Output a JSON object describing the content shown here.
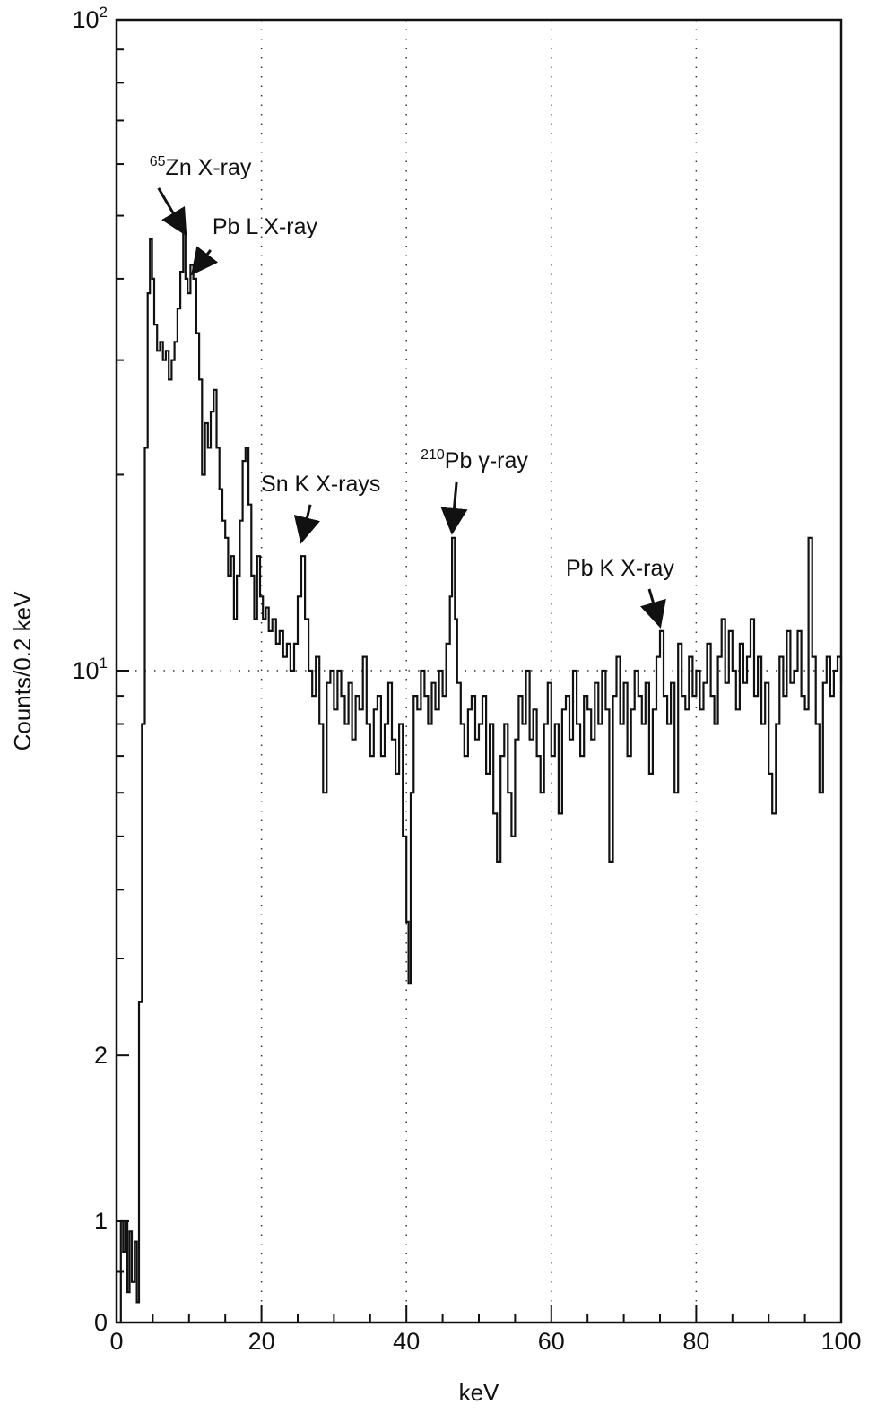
{
  "chart_data": {
    "type": "line",
    "title": "",
    "xlabel": "keV",
    "ylabel": "Counts/0.2 keV",
    "xlim": [
      0,
      100
    ],
    "y_scale": "log-style (linear 0–1, log above 1)",
    "x_ticks": [
      "0",
      "20",
      "40",
      "60",
      "80",
      "100"
    ],
    "y_ticks": [
      {
        "value": 0,
        "base": "0",
        "exp": ""
      },
      {
        "value": 1,
        "base": "1",
        "exp": ""
      },
      {
        "value": 2,
        "base": "2",
        "exp": ""
      },
      {
        "value": 10,
        "base": "10",
        "exp": "1"
      },
      {
        "value": 100,
        "base": "10",
        "exp": "2"
      }
    ],
    "grid": {
      "vertical_at": [
        20,
        40,
        60,
        80
      ],
      "horizontal_at": [
        10
      ],
      "style": "dotted"
    },
    "annotations": [
      {
        "label": "Zn X-ray",
        "sup": "65",
        "x": 9.5,
        "y": 46
      },
      {
        "label": "Pb L X-ray",
        "sup": "",
        "x": 10.5,
        "y": 40
      },
      {
        "label": "Sn K X-rays",
        "sup": "",
        "x": 25.5,
        "y": 15.5
      },
      {
        "label": "Pb γ-ray",
        "sup": "210",
        "x": 46.3,
        "y": 16
      },
      {
        "label": "Pb K X-ray",
        "sup": "",
        "x": 75,
        "y": 11.5
      }
    ],
    "series": [
      {
        "points": [
          [
            0.3,
            0
          ],
          [
            0.6,
            1
          ],
          [
            0.9,
            0.7
          ],
          [
            1.2,
            1
          ],
          [
            1.5,
            0.3
          ],
          [
            1.8,
            0.9
          ],
          [
            2.1,
            0.4
          ],
          [
            2.5,
            0.8
          ],
          [
            2.8,
            0.2
          ],
          [
            3.1,
            2.5
          ],
          [
            3.5,
            8
          ],
          [
            3.9,
            22
          ],
          [
            4.3,
            38
          ],
          [
            4.6,
            46
          ],
          [
            4.9,
            40
          ],
          [
            5.2,
            34
          ],
          [
            5.6,
            31
          ],
          [
            6.0,
            32
          ],
          [
            6.4,
            30
          ],
          [
            6.8,
            31
          ],
          [
            7.2,
            28
          ],
          [
            7.6,
            30
          ],
          [
            8.0,
            32
          ],
          [
            8.4,
            36
          ],
          [
            8.8,
            41
          ],
          [
            9.2,
            47
          ],
          [
            9.5,
            40
          ],
          [
            9.8,
            38
          ],
          [
            10.2,
            42
          ],
          [
            10.6,
            40
          ],
          [
            11.0,
            33
          ],
          [
            11.4,
            28
          ],
          [
            11.8,
            20
          ],
          [
            12.2,
            24
          ],
          [
            12.6,
            22
          ],
          [
            13.0,
            25
          ],
          [
            13.4,
            27
          ],
          [
            13.8,
            22
          ],
          [
            14.2,
            19
          ],
          [
            14.6,
            17
          ],
          [
            15.0,
            16
          ],
          [
            15.4,
            14
          ],
          [
            15.8,
            15
          ],
          [
            16.2,
            12
          ],
          [
            16.6,
            14
          ],
          [
            17.0,
            17
          ],
          [
            17.4,
            21
          ],
          [
            17.8,
            22
          ],
          [
            18.2,
            18
          ],
          [
            18.6,
            14
          ],
          [
            19.0,
            12
          ],
          [
            19.4,
            15
          ],
          [
            19.8,
            13
          ],
          [
            20.2,
            12
          ],
          [
            20.6,
            12.5
          ],
          [
            21.0,
            11.5
          ],
          [
            21.5,
            12
          ],
          [
            22.0,
            11
          ],
          [
            22.5,
            11.5
          ],
          [
            23.0,
            10.5
          ],
          [
            23.5,
            11
          ],
          [
            24.0,
            10
          ],
          [
            24.5,
            11
          ],
          [
            25.0,
            13
          ],
          [
            25.5,
            15
          ],
          [
            26.0,
            12
          ],
          [
            26.5,
            10
          ],
          [
            27.0,
            9
          ],
          [
            27.5,
            10.5
          ],
          [
            28.0,
            8
          ],
          [
            28.5,
            6
          ],
          [
            29.0,
            9.5
          ],
          [
            29.5,
            10
          ],
          [
            30.0,
            8.5
          ],
          [
            30.5,
            10
          ],
          [
            31.0,
            9
          ],
          [
            31.5,
            8
          ],
          [
            32.0,
            9.5
          ],
          [
            32.5,
            7.5
          ],
          [
            33.0,
            9
          ],
          [
            33.5,
            8.5
          ],
          [
            34.0,
            10.5
          ],
          [
            34.5,
            8
          ],
          [
            35.0,
            7
          ],
          [
            35.5,
            8.5
          ],
          [
            36.0,
            9
          ],
          [
            36.5,
            7
          ],
          [
            37.0,
            8
          ],
          [
            37.5,
            9.5
          ],
          [
            38.0,
            7.5
          ],
          [
            38.5,
            6.5
          ],
          [
            39.0,
            8
          ],
          [
            39.5,
            5
          ],
          [
            40.0,
            3.5
          ],
          [
            40.3,
            2.7
          ],
          [
            40.6,
            6
          ],
          [
            41.0,
            9
          ],
          [
            41.5,
            8.5
          ],
          [
            42.0,
            10
          ],
          [
            42.5,
            9
          ],
          [
            43.0,
            8
          ],
          [
            43.5,
            9.5
          ],
          [
            44.0,
            8.5
          ],
          [
            44.5,
            10
          ],
          [
            45.0,
            9
          ],
          [
            45.5,
            11
          ],
          [
            46.0,
            13
          ],
          [
            46.3,
            16
          ],
          [
            46.7,
            12
          ],
          [
            47.0,
            9.5
          ],
          [
            47.5,
            8
          ],
          [
            48.0,
            7
          ],
          [
            48.5,
            8.5
          ],
          [
            49.0,
            9
          ],
          [
            49.5,
            7.5
          ],
          [
            50.0,
            8
          ],
          [
            50.5,
            9
          ],
          [
            51.0,
            6.5
          ],
          [
            51.5,
            8
          ],
          [
            52.0,
            5.5
          ],
          [
            52.5,
            4.5
          ],
          [
            53.0,
            7
          ],
          [
            53.5,
            8
          ],
          [
            54.0,
            6
          ],
          [
            54.5,
            5
          ],
          [
            55.0,
            7.5
          ],
          [
            55.5,
            9
          ],
          [
            56.0,
            8
          ],
          [
            56.5,
            10
          ],
          [
            57.0,
            7.5
          ],
          [
            57.5,
            8.5
          ],
          [
            58.0,
            7
          ],
          [
            58.5,
            6
          ],
          [
            59.0,
            8
          ],
          [
            59.5,
            9.5
          ],
          [
            60.0,
            7
          ],
          [
            60.5,
            8
          ],
          [
            61.0,
            5.5
          ],
          [
            61.5,
            8.5
          ],
          [
            62.0,
            9
          ],
          [
            62.5,
            7.5
          ],
          [
            63.0,
            10
          ],
          [
            63.5,
            8
          ],
          [
            64.0,
            7
          ],
          [
            64.5,
            9
          ],
          [
            65.0,
            8.5
          ],
          [
            65.5,
            7.5
          ],
          [
            66.0,
            9.5
          ],
          [
            66.5,
            8
          ],
          [
            67.0,
            10
          ],
          [
            67.5,
            8.5
          ],
          [
            68.0,
            4.5
          ],
          [
            68.5,
            9
          ],
          [
            69.0,
            10.5
          ],
          [
            69.5,
            8
          ],
          [
            70.0,
            9.5
          ],
          [
            70.5,
            7
          ],
          [
            71.0,
            8.5
          ],
          [
            71.5,
            10
          ],
          [
            72.0,
            9
          ],
          [
            72.5,
            8
          ],
          [
            73.0,
            9.5
          ],
          [
            73.5,
            6.5
          ],
          [
            74.0,
            8.5
          ],
          [
            74.5,
            10.5
          ],
          [
            75.0,
            11.5
          ],
          [
            75.5,
            9
          ],
          [
            76.0,
            8
          ],
          [
            76.5,
            9.5
          ],
          [
            77.0,
            6
          ],
          [
            77.5,
            11
          ],
          [
            78.0,
            9
          ],
          [
            78.5,
            8.5
          ],
          [
            79.0,
            10.5
          ],
          [
            79.5,
            9
          ],
          [
            80.0,
            10
          ],
          [
            80.5,
            8.5
          ],
          [
            81.0,
            9.5
          ],
          [
            81.5,
            11
          ],
          [
            82.0,
            9
          ],
          [
            82.5,
            8
          ],
          [
            83.0,
            10.5
          ],
          [
            83.5,
            12
          ],
          [
            84.0,
            9.5
          ],
          [
            84.5,
            11.5
          ],
          [
            85.0,
            10
          ],
          [
            85.5,
            8.5
          ],
          [
            86.0,
            11
          ],
          [
            86.5,
            9.5
          ],
          [
            87.0,
            10.5
          ],
          [
            87.5,
            12
          ],
          [
            88.0,
            9
          ],
          [
            88.5,
            10.5
          ],
          [
            89.0,
            8
          ],
          [
            89.5,
            9.5
          ],
          [
            90.0,
            6.5
          ],
          [
            90.5,
            5.5
          ],
          [
            91.0,
            8
          ],
          [
            91.5,
            10.5
          ],
          [
            92.0,
            9
          ],
          [
            92.5,
            11.5
          ],
          [
            93.0,
            9.5
          ],
          [
            93.5,
            10
          ],
          [
            94.0,
            11.5
          ],
          [
            94.5,
            9
          ],
          [
            95.0,
            8.5
          ],
          [
            95.5,
            16
          ],
          [
            96.0,
            10.5
          ],
          [
            96.5,
            8
          ],
          [
            97.0,
            6
          ],
          [
            97.5,
            9.5
          ],
          [
            98.0,
            10.5
          ],
          [
            98.5,
            9
          ],
          [
            99.0,
            10
          ],
          [
            99.5,
            10.5
          ],
          [
            100.0,
            9.5
          ]
        ]
      }
    ]
  }
}
